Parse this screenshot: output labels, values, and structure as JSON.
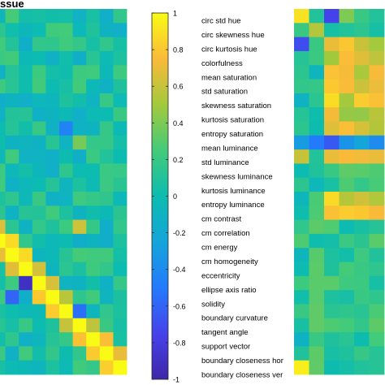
{
  "title": "ssue",
  "chart_data": {
    "type": "heatmap",
    "title": "ssue",
    "colormap": "parula",
    "colorbar": {
      "min": -1,
      "max": 1,
      "tick_values": [
        1,
        0.8,
        0.6,
        0.4,
        0.2,
        0,
        -0.2,
        -0.4,
        -0.6,
        -0.8,
        -1
      ],
      "tick_labels": [
        "1",
        "0.8",
        "0.6",
        "0.4",
        "0.2",
        "0",
        "-0.2",
        "-0.4",
        "-0.6",
        "-0.8",
        "-1"
      ]
    },
    "features": [
      "circ std hue",
      "circ skewness hue",
      "circ kurtosis hue",
      "colorfulness",
      "mean saturation",
      "std saturation",
      "skewness saturation",
      "kurtosis saturation",
      "entropy saturation",
      "mean luminance",
      "std luminance",
      "skewness luminance",
      "kurtosis luminance",
      "entropy luminance",
      "cm contrast",
      "cm correlation",
      "cm energy",
      "cm homogeneity",
      "eccentricity",
      "ellipse axis ratio",
      "solidity",
      "boundary curvature",
      "tangent angle",
      "support vector",
      "boundary closeness hor",
      "boundary closeness ver"
    ]
  }
}
